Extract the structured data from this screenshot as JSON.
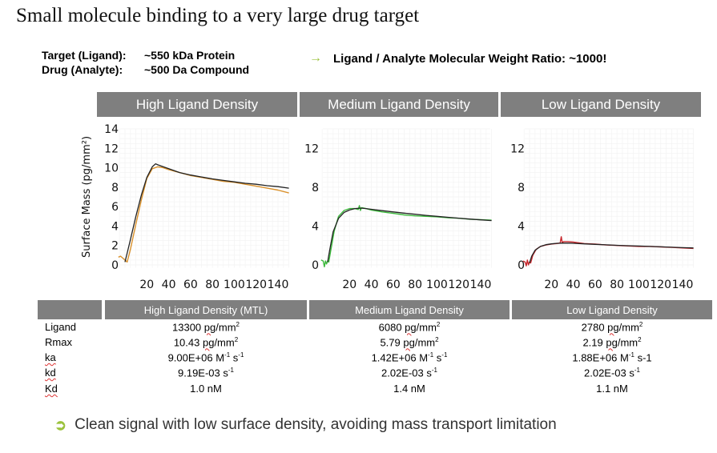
{
  "title": "Small molecule binding to a very large drug target",
  "info": [
    {
      "key": "Target (Ligand):",
      "value": "~550 kDa Protein"
    },
    {
      "key": "Drug (Analyte):",
      "value": "~500 Da Compound"
    }
  ],
  "ratio": {
    "arrow": "→",
    "text": "Ligand / Analyte Molecular Weight Ratio: ~1000!"
  },
  "bullet": {
    "icon": "➲",
    "text": "Clean signal with low surface density, avoiding mass transport limitation"
  },
  "chart_data": [
    {
      "type": "line",
      "title": "High Ligand Density",
      "xlabel": "",
      "ylabel": "Surface Mass (pg/mm²)",
      "xlim": [
        -8,
        150
      ],
      "ylim": [
        0,
        14
      ],
      "xticks": [
        20,
        40,
        60,
        80,
        100,
        120,
        140
      ],
      "yticks": [
        0,
        2,
        4,
        6,
        8,
        10,
        12,
        14
      ],
      "grid": true,
      "series": [
        {
          "name": "data",
          "color": "#d9902a",
          "x": [
            -6,
            -4,
            -2,
            0,
            2,
            5,
            10,
            15,
            20,
            25,
            30,
            35,
            40,
            50,
            60,
            70,
            80,
            90,
            100,
            110,
            120,
            130,
            140,
            150
          ],
          "y": [
            0.8,
            0.9,
            0.7,
            0.5,
            0.3,
            1.6,
            4.2,
            6.7,
            8.9,
            9.9,
            10.1,
            10.0,
            9.8,
            9.5,
            9.2,
            9.0,
            8.8,
            8.6,
            8.5,
            8.3,
            8.1,
            7.9,
            7.7,
            7.4
          ]
        },
        {
          "name": "fit",
          "color": "#222222",
          "x": [
            0,
            2,
            5,
            10,
            15,
            20,
            25,
            28,
            30,
            35,
            40,
            50,
            60,
            70,
            80,
            90,
            100,
            110,
            120,
            130,
            140,
            150
          ],
          "y": [
            0.3,
            1.2,
            2.6,
            5.0,
            7.2,
            9.0,
            10.1,
            10.4,
            10.3,
            10.1,
            9.9,
            9.5,
            9.25,
            9.05,
            8.85,
            8.7,
            8.55,
            8.4,
            8.3,
            8.15,
            8.05,
            7.9
          ]
        }
      ]
    },
    {
      "type": "line",
      "title": "Medium Ligand Density",
      "xlabel": "",
      "ylabel": "",
      "xlim": [
        -8,
        150
      ],
      "ylim": [
        0,
        14
      ],
      "xticks": [
        20,
        40,
        60,
        80,
        100,
        120,
        140
      ],
      "yticks": [
        0,
        4,
        8,
        12
      ],
      "grid": true,
      "series": [
        {
          "name": "data",
          "color": "#3cb93c",
          "x": [
            -6,
            -4,
            -3,
            -2,
            -1,
            0,
            1,
            3,
            6,
            10,
            15,
            20,
            25,
            28,
            29,
            30,
            31,
            35,
            40,
            50,
            60,
            70,
            80,
            90,
            100,
            110,
            120,
            130,
            140,
            150
          ],
          "y": [
            0.5,
            0.4,
            -0.2,
            0.4,
            0.1,
            0.4,
            0.3,
            1.6,
            3.5,
            5.0,
            5.6,
            5.8,
            5.8,
            5.7,
            6.1,
            5.6,
            5.9,
            5.8,
            5.65,
            5.45,
            5.3,
            5.15,
            5.05,
            5.0,
            4.95,
            4.85,
            4.8,
            4.7,
            4.65,
            4.6
          ]
        },
        {
          "name": "fit",
          "color": "#222222",
          "x": [
            0,
            2,
            5,
            10,
            15,
            20,
            25,
            30,
            35,
            40,
            50,
            60,
            70,
            80,
            90,
            100,
            110,
            120,
            130,
            140,
            150
          ],
          "y": [
            0.3,
            1.6,
            3.4,
            4.8,
            5.4,
            5.65,
            5.8,
            5.85,
            5.8,
            5.72,
            5.58,
            5.45,
            5.33,
            5.21,
            5.1,
            5.0,
            4.9,
            4.81,
            4.72,
            4.64,
            4.56
          ]
        }
      ]
    },
    {
      "type": "line",
      "title": "Low Ligand Density",
      "xlabel": "",
      "ylabel": "",
      "xlim": [
        -8,
        150
      ],
      "ylim": [
        0,
        14
      ],
      "xticks": [
        20,
        40,
        60,
        80,
        100,
        120,
        140
      ],
      "yticks": [
        0,
        4,
        8,
        12
      ],
      "grid": true,
      "series": [
        {
          "name": "data",
          "color": "#c8282d",
          "x": [
            -6,
            -4,
            -3,
            -2,
            -1,
            0,
            1,
            3,
            6,
            10,
            15,
            20,
            25,
            28,
            29,
            30,
            31,
            35,
            40,
            50,
            60,
            70,
            80,
            90,
            100,
            110,
            120,
            130,
            140,
            150
          ],
          "y": [
            0.4,
            0.3,
            -0.1,
            0.5,
            0.0,
            0.3,
            0.2,
            1.0,
            1.6,
            1.9,
            2.05,
            2.15,
            2.2,
            2.25,
            2.9,
            2.25,
            2.4,
            2.4,
            2.35,
            2.2,
            2.15,
            2.05,
            2.0,
            1.95,
            1.9,
            1.9,
            1.85,
            1.8,
            1.75,
            1.7
          ]
        },
        {
          "name": "fit",
          "color": "#222222",
          "x": [
            0,
            2,
            5,
            10,
            15,
            20,
            25,
            30,
            35,
            40,
            50,
            60,
            70,
            80,
            90,
            100,
            110,
            120,
            130,
            140,
            150
          ],
          "y": [
            0.2,
            0.9,
            1.5,
            1.9,
            2.08,
            2.17,
            2.22,
            2.24,
            2.24,
            2.22,
            2.17,
            2.12,
            2.07,
            2.02,
            1.98,
            1.94,
            1.9,
            1.86,
            1.82,
            1.78,
            1.75
          ]
        }
      ]
    }
  ],
  "table": {
    "headers": [
      "High Ligand Density (MTL)",
      "Medium Ligand Density",
      "Low Ligand Density"
    ],
    "rows": [
      {
        "label": "Ligand",
        "values": [
          {
            "num": "13300",
            "unit": "pg",
            "rest": "/mm",
            "sup": "2",
            "tail": ""
          },
          {
            "num": "6080",
            "unit": "pg",
            "rest": "/mm",
            "sup": "2",
            "tail": ""
          },
          {
            "num": "2780",
            "unit": "pg",
            "rest": "/mm",
            "sup": "2",
            "tail": ""
          }
        ]
      },
      {
        "label": "Rmax",
        "values": [
          {
            "num": "10.43",
            "unit": "pg",
            "rest": "/mm",
            "sup": "2",
            "tail": ""
          },
          {
            "num": "5.79",
            "unit": "pg",
            "rest": "/mm",
            "sup": "2",
            "tail": ""
          },
          {
            "num": "2.19",
            "unit": "pg",
            "rest": "/mm",
            "sup": "2",
            "tail": ""
          }
        ]
      },
      {
        "label": "ka",
        "values": [
          {
            "text": "9.00E+06 M",
            "sup1": "-1",
            "mid": " s",
            "sup2": "-1",
            "tail": ""
          },
          {
            "text": "1.42E+06 M",
            "sup1": "-1",
            "mid": " s",
            "sup2": "-1",
            "tail": ""
          },
          {
            "text": "1.88E+06 M",
            "sup1": "-1",
            "mid": " s-1",
            "sup2": "",
            "tail": ""
          }
        ]
      },
      {
        "label": "kd",
        "values": [
          {
            "text": "9.19E-03 s",
            "sup1": "-1",
            "mid": "",
            "sup2": "",
            "tail": ""
          },
          {
            "text": "2.02E-03 s",
            "sup1": "-1",
            "mid": "",
            "sup2": "",
            "tail": ""
          },
          {
            "text": "2.02E-03 s",
            "sup1": "-1",
            "mid": "",
            "sup2": "",
            "tail": ""
          }
        ]
      },
      {
        "label": "Kd",
        "values": [
          {
            "text": "1.0 nM",
            "sup1": "",
            "mid": "",
            "sup2": "",
            "tail": ""
          },
          {
            "text": "1.4 nM",
            "sup1": "",
            "mid": "",
            "sup2": "",
            "tail": ""
          },
          {
            "text": "1.1 nM",
            "sup1": "",
            "mid": "",
            "sup2": "",
            "tail": ""
          }
        ]
      }
    ]
  }
}
